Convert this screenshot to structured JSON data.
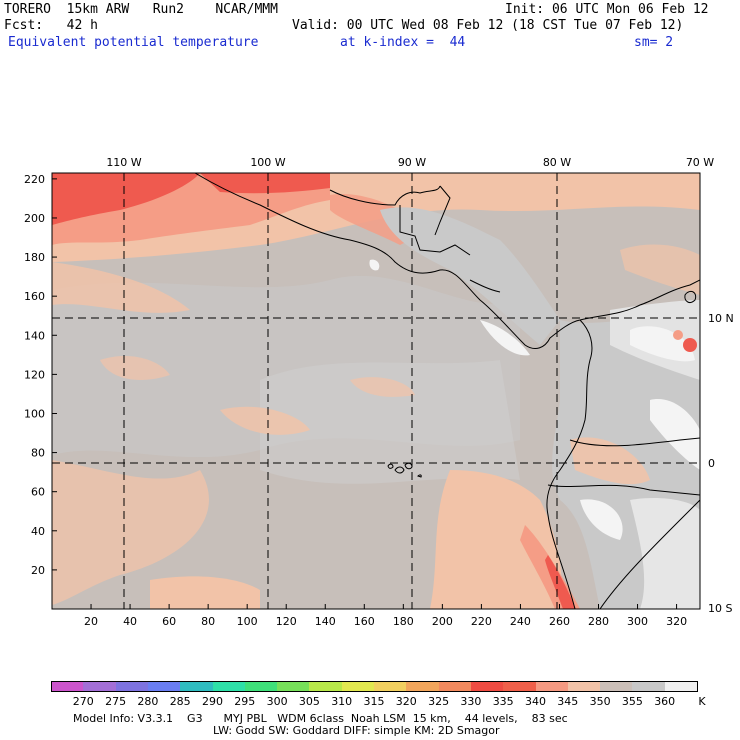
{
  "header": {
    "model": "TORERO  15km ARW   Run2    NCAR/MMM",
    "init": "Init: 06 UTC Mon 06 Feb 12",
    "fcst": "Fcst:   42 h",
    "valid": "Valid: 00 UTC Wed 08 Feb 12 (18 CST Tue 07 Feb 12)",
    "field": "Equivalent potential temperature",
    "kindex": "at k-index =  44",
    "sm": "sm= 2"
  },
  "map": {
    "lon_labels": [
      "110 W",
      "100 W",
      "90 W",
      "80 W",
      "70 W"
    ],
    "lat_labels": [
      "10 N",
      "0",
      "10 S"
    ],
    "x_ticks": [
      "20",
      "40",
      "60",
      "80",
      "100",
      "120",
      "140",
      "160",
      "180",
      "200",
      "220",
      "240",
      "260",
      "280",
      "300",
      "320"
    ],
    "y_ticks": [
      "220",
      "200",
      "180",
      "160",
      "140",
      "120",
      "100",
      "80",
      "60",
      "40",
      "20"
    ],
    "colors": {
      "ocean_base": "#c7bfba",
      "grey": "#c9c9c9",
      "peach": "#f2c3a8",
      "salmon": "#f59d86",
      "red": "#ef5a4f",
      "white": "#f4f4f4",
      "gridline": "#000000"
    }
  },
  "colorbar": {
    "labels": [
      "270",
      "275",
      "280",
      "285",
      "290",
      "295",
      "300",
      "305",
      "310",
      "315",
      "320",
      "325",
      "330",
      "335",
      "340",
      "345",
      "350",
      "355",
      "360"
    ],
    "unit": "K",
    "colors": [
      "#cc55cc",
      "#a36fd6",
      "#7e73e0",
      "#6a7ef2",
      "#2fbcc0",
      "#2ee0a8",
      "#3fe07a",
      "#77e05a",
      "#b8e84a",
      "#e2e850",
      "#f2d060",
      "#f2a65c",
      "#f28a5e",
      "#ef4c42",
      "#f0604a",
      "#f59a82",
      "#f2c3a8",
      "#cbbfb8",
      "#c8c8c8",
      "#f0f0f0"
    ]
  },
  "footer": {
    "line1": "Model Info: V3.3.1    G3      MYJ PBL   WDM 6class  Noah LSM  15 km,    44 levels,    83 sec",
    "line2": "LW: Godd SW: Goddard DIFF: simple KM: 2D Smagor"
  }
}
